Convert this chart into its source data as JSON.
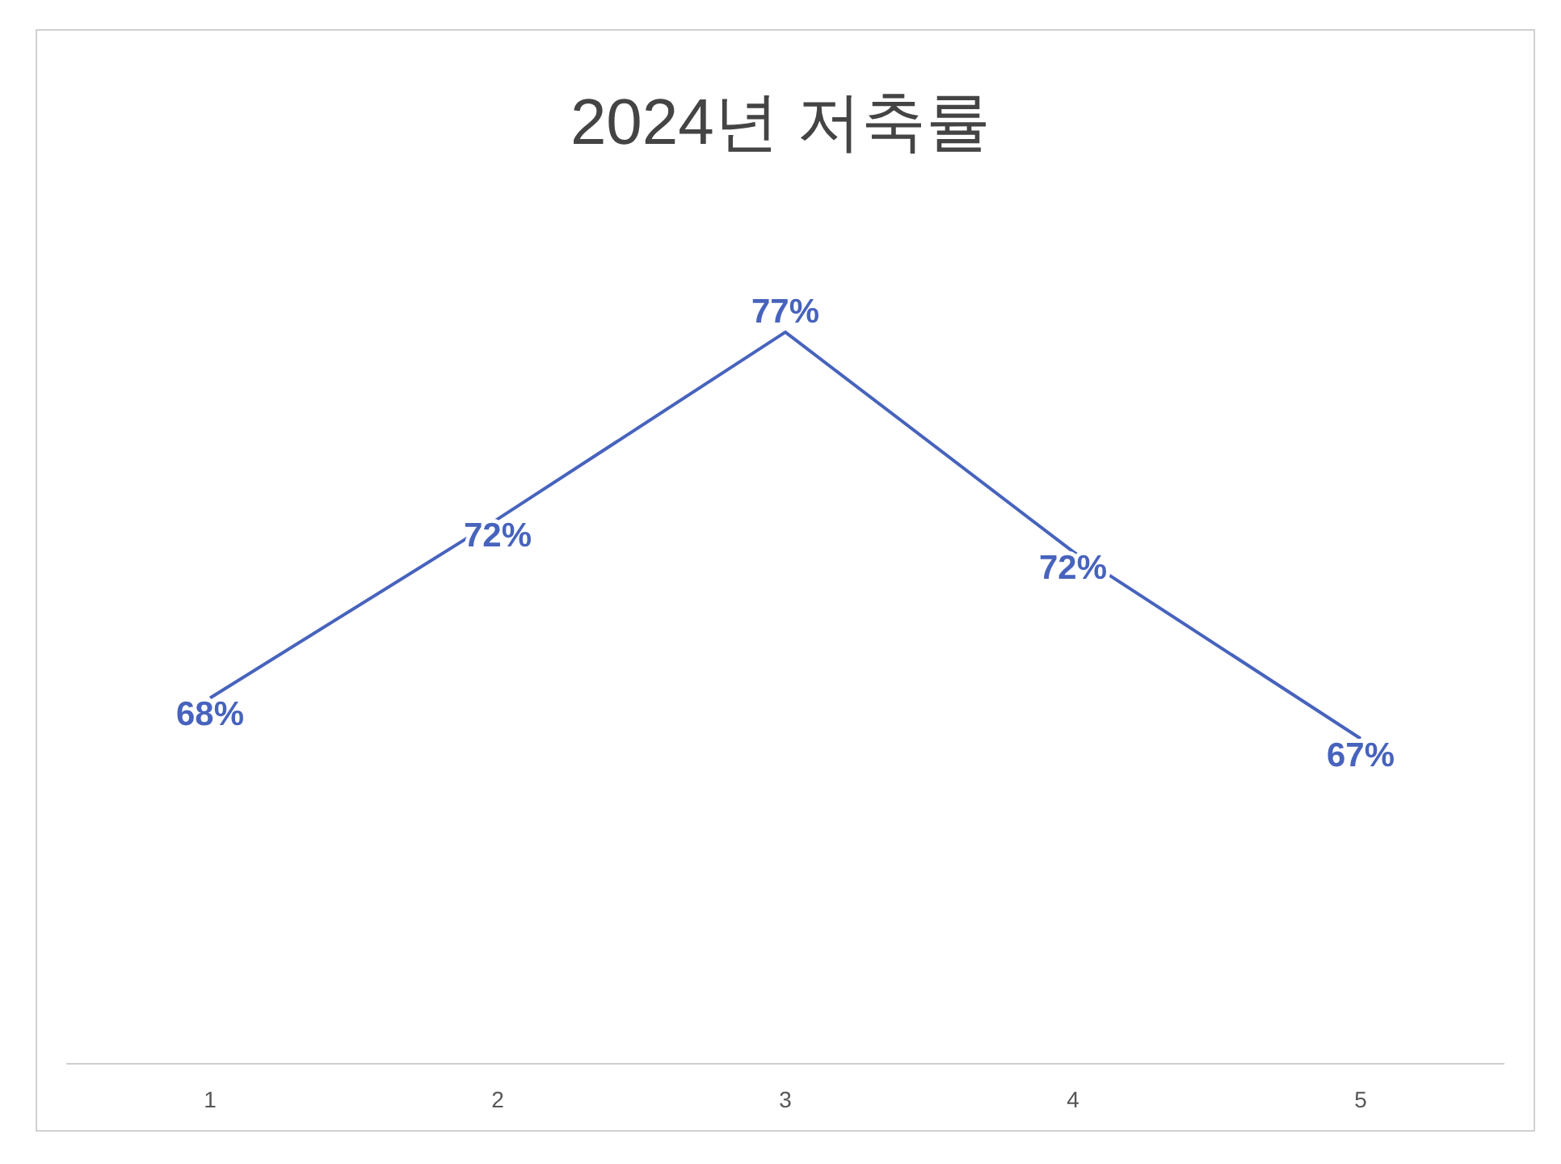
{
  "chart_data": {
    "type": "line",
    "title": "2024년 저축률",
    "categories": [
      "1",
      "2",
      "3",
      "4",
      "5"
    ],
    "series": [
      {
        "color": "#4763bd",
        "values": [
          68,
          72.4,
          77,
          71.6,
          67
        ],
        "value_labels": [
          "68%",
          "72%",
          "77%",
          "72%",
          "67%"
        ]
      }
    ],
    "tick_labels": "x",
    "marker": "none"
  }
}
